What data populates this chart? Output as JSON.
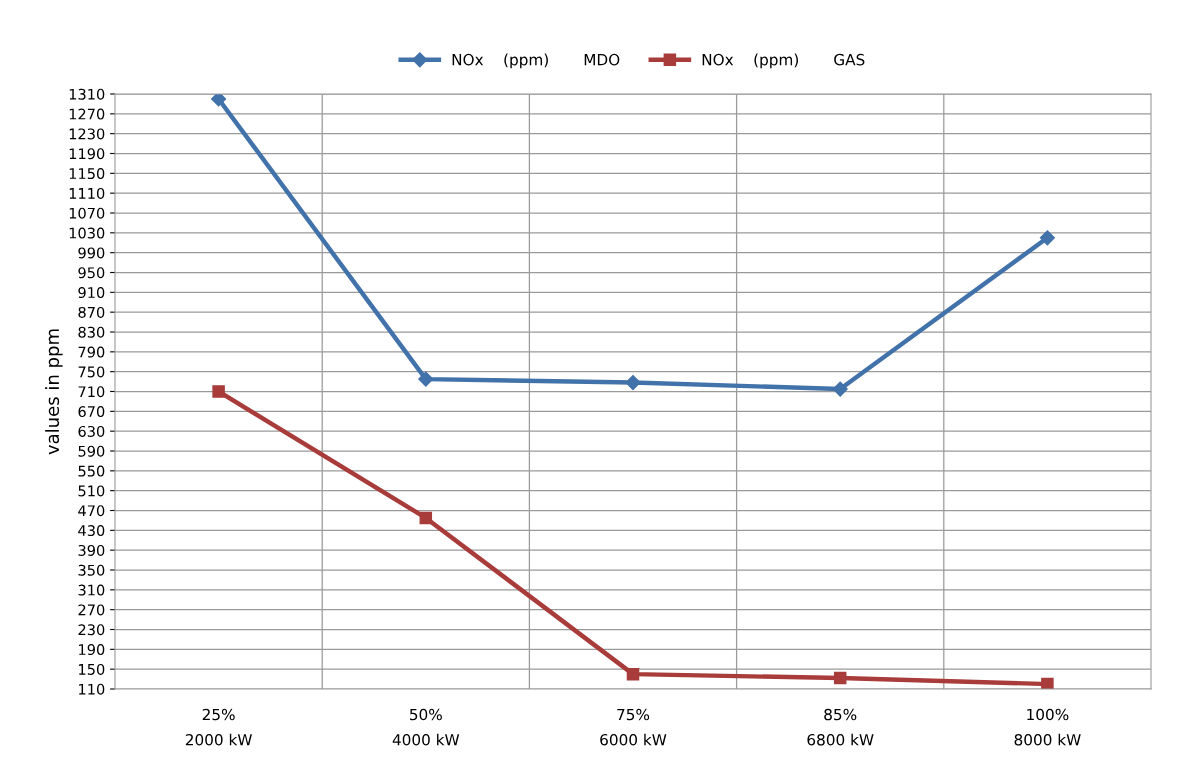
{
  "chart_data": {
    "type": "line",
    "ylabel": "values in ppm",
    "categories": [
      "25%\n2000 kW",
      "50%\n4000 kW",
      "75%\n6000 kW",
      "85%\n6800 kW",
      "100%\n8000 kW"
    ],
    "series": [
      {
        "name": "NOx    (ppm)       MDO",
        "color": "#4272aa",
        "marker": "diamond",
        "values": [
          1300,
          735,
          728,
          715,
          1020
        ]
      },
      {
        "name": "NOx    (ppm)       GAS",
        "color": "#a83c3a",
        "marker": "square",
        "values": [
          710,
          455,
          140,
          132,
          120
        ]
      }
    ],
    "ylim": [
      110,
      1310
    ],
    "yticks": [
      110,
      150,
      190,
      230,
      270,
      310,
      350,
      390,
      430,
      470,
      510,
      550,
      590,
      630,
      670,
      710,
      750,
      790,
      830,
      870,
      910,
      950,
      990,
      1030,
      1070,
      1110,
      1150,
      1190,
      1230,
      1270,
      1310
    ],
    "grid": true,
    "legend": "top",
    "line_style": "solid"
  }
}
